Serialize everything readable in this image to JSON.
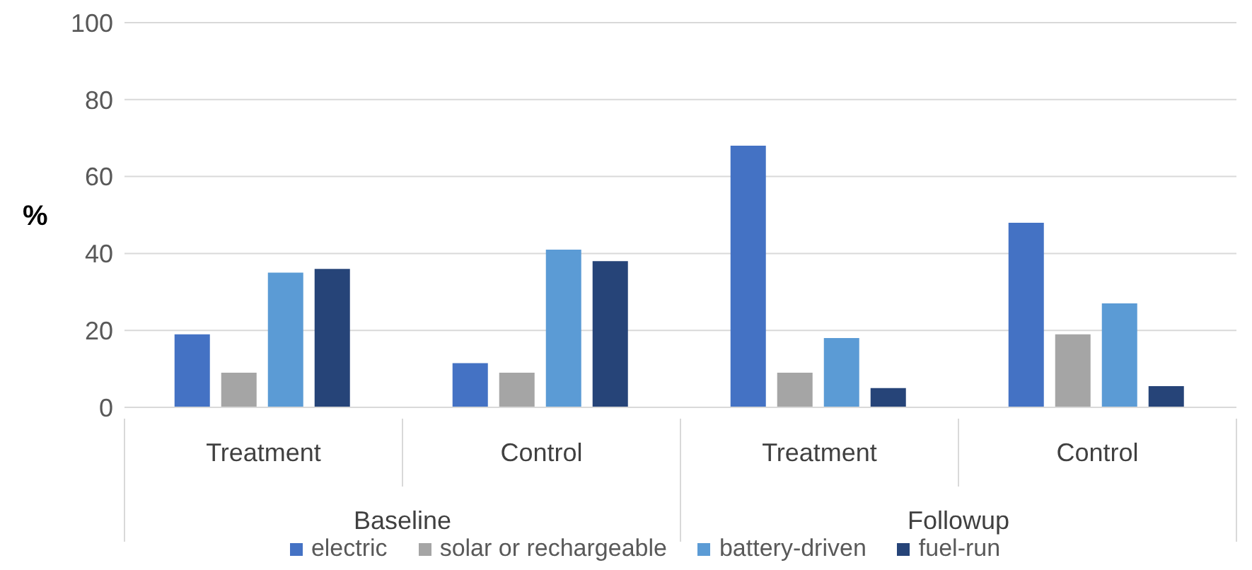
{
  "chart_data": {
    "type": "bar",
    "ylabel": "%",
    "categories": [
      "Treatment",
      "Control",
      "Treatment",
      "Control"
    ],
    "annotations": [
      "Baseline",
      "Followup"
    ],
    "series": [
      {
        "name": "electric",
        "color": "#4472c4",
        "values": [
          19,
          11.5,
          68,
          48
        ]
      },
      {
        "name": "solar or rechargeable",
        "color": "#a5a5a5",
        "values": [
          9,
          9,
          9,
          19
        ]
      },
      {
        "name": "battery-driven",
        "color": "#5b9bd5",
        "values": [
          35,
          41,
          18,
          27
        ]
      },
      {
        "name": "fuel-run",
        "color": "#264478",
        "values": [
          36,
          38,
          5,
          5.5
        ]
      }
    ],
    "ylim": [
      0,
      100
    ],
    "yticks": [
      0,
      20,
      40,
      60,
      80,
      100
    ],
    "grid": "y",
    "legend": "bottom"
  }
}
